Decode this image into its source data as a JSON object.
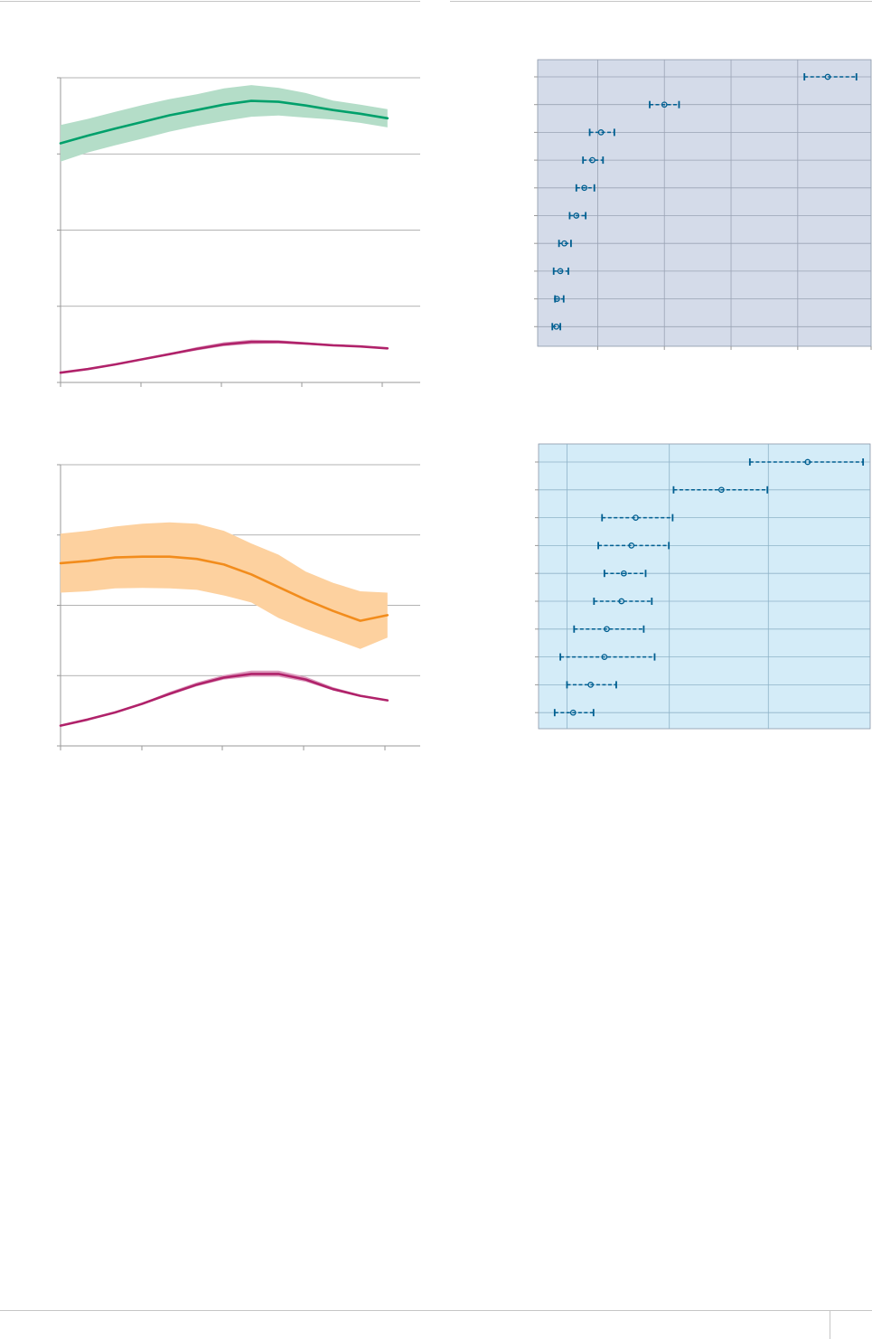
{
  "palette": {
    "green": "#00a06b",
    "green_band": "#b4ddc8",
    "orange": "#f28c1c",
    "orange_band": "#fdd19f",
    "magenta": "#b0226a",
    "magenta_band": "#dd9dbf",
    "forest_blue": "#005f91",
    "panel_grey_blue": "#d4dbe9",
    "panel_light_blue": "#d4ecf8"
  },
  "chart_data": [
    {
      "type": "line",
      "grid": true,
      "x": [
        0,
        1,
        2,
        3,
        4,
        5,
        6,
        7,
        8,
        9,
        10,
        11,
        12
      ],
      "xlim": [
        0,
        13.2
      ],
      "ylim": [
        0,
        100
      ],
      "y_gridlines": [
        25,
        50,
        75
      ],
      "series": [
        {
          "color": "green",
          "values": [
            78.5,
            81,
            83.3,
            85.5,
            87.7,
            89.4,
            91.2,
            92.4,
            92.1,
            90.9,
            89.4,
            88.2,
            86.7
          ],
          "lower": [
            72.5,
            75.5,
            77.8,
            80,
            82.3,
            84.2,
            85.8,
            87.2,
            87.6,
            86.9,
            86.3,
            85.2,
            83.7
          ],
          "upper": [
            84.5,
            86.5,
            88.8,
            91,
            93,
            94.6,
            96.5,
            97.6,
            96.7,
            95,
            92.5,
            91.2,
            89.7
          ]
        },
        {
          "color": "magenta",
          "values": [
            3.2,
            4.4,
            5.9,
            7.6,
            9.3,
            11,
            12.5,
            13.3,
            13.3,
            12.8,
            12.2,
            11.8,
            11.2
          ],
          "lower": [
            3.2,
            4.4,
            5.9,
            7.6,
            9,
            10.5,
            11.9,
            12.6,
            12.8,
            12.4,
            11.9,
            11.5,
            11
          ],
          "upper": [
            3.2,
            4.4,
            5.9,
            7.7,
            9.6,
            11.6,
            13.2,
            14,
            13.9,
            13.2,
            12.5,
            12.1,
            11.4
          ]
        }
      ]
    },
    {
      "type": "line",
      "grid": true,
      "x": [
        0,
        1,
        2,
        3,
        4,
        5,
        6,
        7,
        8,
        9,
        10,
        11,
        12
      ],
      "xlim": [
        0,
        13.2
      ],
      "ylim": [
        0,
        100
      ],
      "y_gridlines": [
        25,
        50,
        75
      ],
      "series": [
        {
          "color": "orange",
          "values": [
            65,
            65.8,
            67,
            67.3,
            67.3,
            66.5,
            64.5,
            61,
            56.5,
            52,
            48,
            44.5,
            46.5
          ],
          "lower": [
            54.5,
            55,
            56,
            56.2,
            56,
            55.5,
            53.5,
            51,
            45.5,
            41.5,
            38,
            34.5,
            38.5
          ],
          "upper": [
            75.5,
            76.5,
            78,
            79,
            79.5,
            79,
            76.5,
            72,
            68,
            62,
            58,
            55,
            54.5
          ]
        },
        {
          "color": "magenta",
          "values": [
            7.2,
            9.4,
            11.9,
            15,
            18.5,
            21.8,
            24.3,
            25.6,
            25.6,
            23.6,
            20.2,
            17.8,
            16.2
          ],
          "lower": [
            7.2,
            9.4,
            11.8,
            14.7,
            18,
            21.2,
            23.6,
            24.6,
            24.6,
            22.8,
            19.7,
            17.5,
            16
          ],
          "upper": [
            7.2,
            9.4,
            12,
            15.3,
            19.2,
            22.6,
            25.2,
            26.8,
            26.8,
            24.6,
            20.9,
            18.2,
            16.5
          ]
        }
      ]
    },
    {
      "type": "scatter",
      "subtype": "forest-plot",
      "grid": true,
      "xlim": [
        0,
        50
      ],
      "x_gridlines": [
        9,
        19,
        29,
        39
      ],
      "points": [
        {
          "estimate": 43.5,
          "lower": 40,
          "upper": 47.8
        },
        {
          "estimate": 19,
          "lower": 16.8,
          "upper": 21.2
        },
        {
          "estimate": 9.5,
          "lower": 7.8,
          "upper": 11.5
        },
        {
          "estimate": 8.2,
          "lower": 6.8,
          "upper": 9.8
        },
        {
          "estimate": 7,
          "lower": 5.8,
          "upper": 8.5
        },
        {
          "estimate": 5.8,
          "lower": 4.8,
          "upper": 7.2
        },
        {
          "estimate": 4,
          "lower": 3.2,
          "upper": 5
        },
        {
          "estimate": 3.4,
          "lower": 2.4,
          "upper": 4.6
        },
        {
          "estimate": 2.9,
          "lower": 2.6,
          "upper": 3.9
        },
        {
          "estimate": 2.8,
          "lower": 2.2,
          "upper": 3.4
        }
      ]
    },
    {
      "type": "scatter",
      "subtype": "forest-plot",
      "grid": true,
      "xlim": [
        0,
        70
      ],
      "x_gridlines": [
        6,
        27.6,
        48.5
      ],
      "points": [
        {
          "estimate": 56.8,
          "lower": 44.6,
          "upper": 68.5
        },
        {
          "estimate": 38.6,
          "lower": 28.5,
          "upper": 48.3
        },
        {
          "estimate": 20.5,
          "lower": 13.4,
          "upper": 28.3
        },
        {
          "estimate": 19.6,
          "lower": 12.6,
          "upper": 27.5
        },
        {
          "estimate": 18,
          "lower": 13.9,
          "upper": 22.6
        },
        {
          "estimate": 17.5,
          "lower": 11.7,
          "upper": 23.9
        },
        {
          "estimate": 14.4,
          "lower": 7.5,
          "upper": 22.2
        },
        {
          "estimate": 13.9,
          "lower": 4.6,
          "upper": 24.5
        },
        {
          "estimate": 11,
          "lower": 6,
          "upper": 16.4
        },
        {
          "estimate": 7.3,
          "lower": 3.4,
          "upper": 11.6
        }
      ]
    }
  ]
}
